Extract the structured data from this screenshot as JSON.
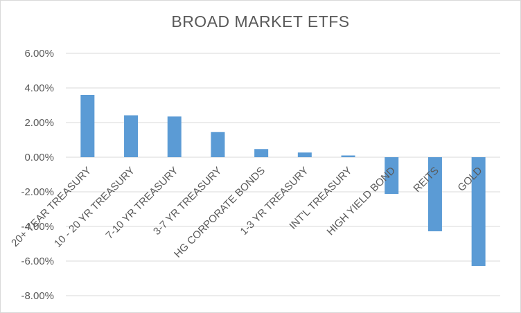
{
  "chart_data": {
    "type": "bar",
    "title": "BROAD MARKET ETFS",
    "categories": [
      "20+ YEAR TREASURY",
      "10 - 20 YR TREASURY",
      "7-10 YR TREASURY",
      "3-7 YR TREASURY",
      "HG CORPORATE BONDS",
      "1-3 YR TREASURY",
      "INT'L TREASURY",
      "HIGH YIELD BOND",
      "REITS",
      "GOLD"
    ],
    "values": [
      3.6,
      2.42,
      2.35,
      1.45,
      0.47,
      0.27,
      0.1,
      -2.12,
      -4.28,
      -6.28
    ],
    "yticks": [
      "6.00%",
      "4.00%",
      "2.00%",
      "0.00%",
      "-2.00%",
      "-4.00%",
      "-6.00%",
      "-8.00%"
    ],
    "ylim": [
      -8,
      6
    ],
    "grid": true,
    "legend": "none",
    "bar_color": "#5b9bd5",
    "grid_color": "#d9d9d9",
    "text_color": "#595959"
  }
}
